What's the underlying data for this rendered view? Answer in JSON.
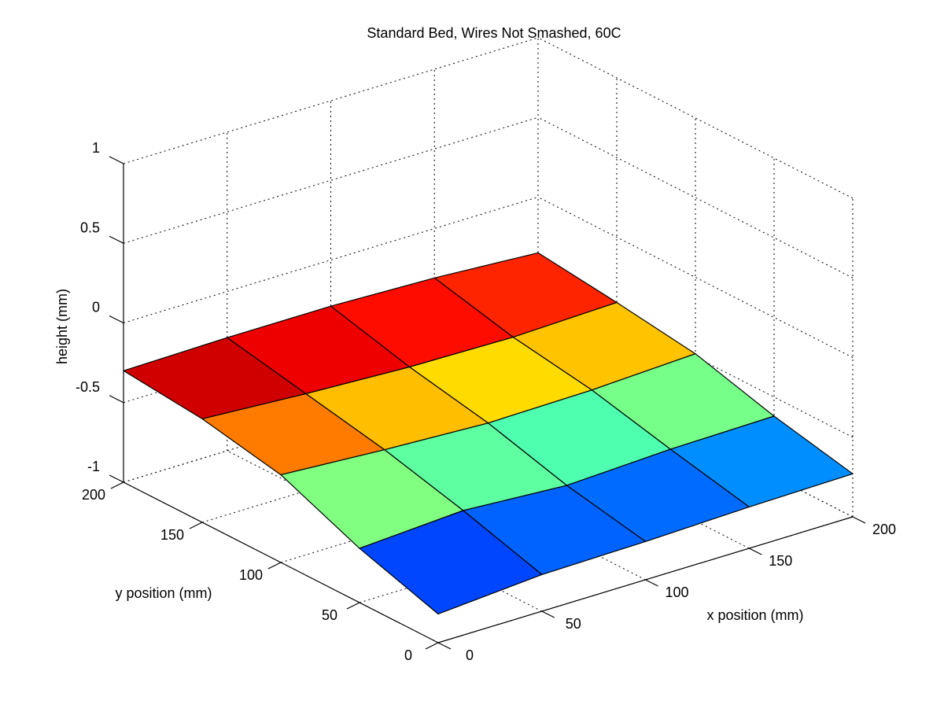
{
  "chart_data": {
    "type": "surface",
    "title": "Standard Bed, Wires Not Smashed, 60C",
    "xlabel": "x position (mm)",
    "ylabel": "y position (mm)",
    "zlabel": "height (mm)",
    "xlim": [
      0,
      200
    ],
    "ylim": [
      0,
      200
    ],
    "zlim": [
      -1,
      1
    ],
    "xticks": [
      "0",
      "50",
      "100",
      "150",
      "200"
    ],
    "yticks": [
      "0",
      "50",
      "100",
      "150",
      "200"
    ],
    "zticks": [
      "-1",
      "-0.5",
      "0",
      "0.5",
      "1"
    ],
    "grid": true,
    "colormap": "jet",
    "x": [
      0,
      50,
      100,
      150,
      200
    ],
    "y": [
      0,
      50,
      100,
      150,
      200
    ],
    "z": [
      [
        -0.82,
        -0.77,
        -0.76,
        -0.74,
        -0.73
      ],
      [
        -0.66,
        -0.62,
        -0.66,
        -0.63,
        -0.62
      ],
      [
        -0.45,
        -0.49,
        -0.52,
        -0.51,
        -0.48
      ],
      [
        -0.35,
        -0.39,
        -0.42,
        -0.43,
        -0.41
      ],
      [
        -0.3,
        -0.29,
        -0.29,
        -0.31,
        -0.35
      ]
    ]
  }
}
